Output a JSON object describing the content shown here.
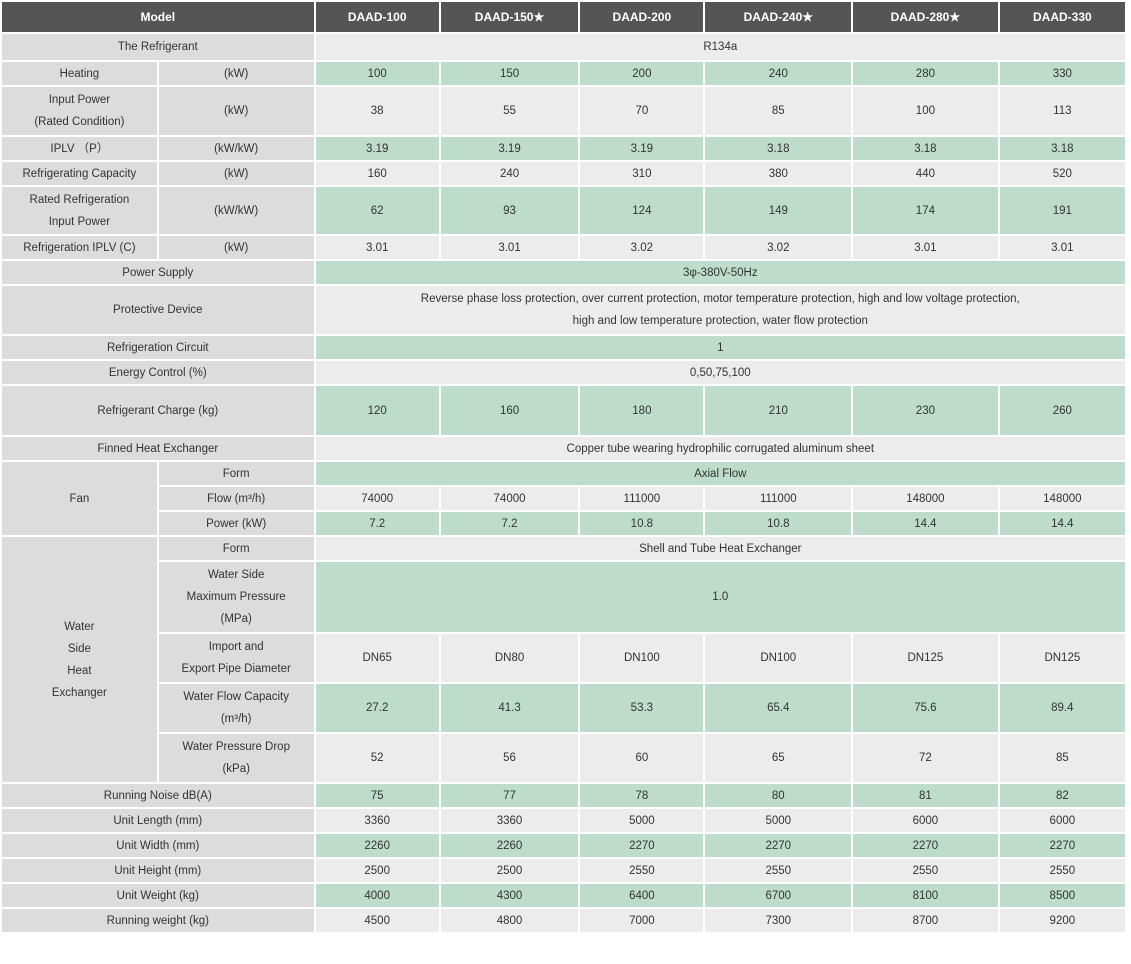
{
  "models": [
    "DAAD-100",
    "DAAD-150★",
    "DAAD-200",
    "DAAD-240★",
    "DAAD-280★",
    "DAAD-330"
  ],
  "model_header": "Model",
  "rows": [
    {
      "type": "span",
      "label": "The Refrigerant",
      "value": "R134a",
      "shade": "w",
      "h": 26
    },
    {
      "type": "split",
      "label": "Heating",
      "unit": "(kW)",
      "values": [
        "100",
        "150",
        "200",
        "240",
        "280",
        "330"
      ],
      "shade": "g",
      "h": 23
    },
    {
      "type": "split",
      "label": "Input Power\n(Rated Condition)",
      "unit": "(kW)",
      "values": [
        "38",
        "55",
        "70",
        "85",
        "100",
        "113"
      ],
      "shade": "w",
      "h": 48
    },
    {
      "type": "split",
      "label": "IPLV （P）",
      "unit": "(kW/kW)",
      "values": [
        "3.19",
        "3.19",
        "3.19",
        "3.18",
        "3.18",
        "3.18"
      ],
      "shade": "g",
      "h": 23
    },
    {
      "type": "split",
      "label": "Refrigerating Capacity",
      "unit": "(kW)",
      "values": [
        "160",
        "240",
        "310",
        "380",
        "440",
        "520"
      ],
      "shade": "w",
      "h": 23
    },
    {
      "type": "split",
      "label": "Rated Refrigeration\nInput Power",
      "unit": "(kW/kW)",
      "values": [
        "62",
        "93",
        "124",
        "149",
        "174",
        "191"
      ],
      "shade": "g",
      "h": 47
    },
    {
      "type": "split",
      "label": "Refrigeration IPLV (C)",
      "unit": "(kW)",
      "values": [
        "3.01",
        "3.01",
        "3.02",
        "3.02",
        "3.01",
        "3.01"
      ],
      "shade": "w",
      "h": 23
    },
    {
      "type": "span",
      "label": "Power Supply",
      "value": "3φ-380V-50Hz",
      "shade": "g",
      "h": 23
    },
    {
      "type": "span",
      "label": "Protective Device",
      "value": "Reverse phase loss protection, over current protection, motor temperature protection, high and low voltage protection,\nhigh and low temperature protection, water flow protection",
      "shade": "w",
      "h": 48
    },
    {
      "type": "span",
      "label": "Refrigeration Circuit",
      "value": "1",
      "shade": "g",
      "h": 23
    },
    {
      "type": "span",
      "label": "Energy Control (%)",
      "value": "0,50,75,100",
      "shade": "w",
      "h": 23
    },
    {
      "type": "full",
      "label": "Refrigerant Charge (kg)",
      "values": [
        "120",
        "160",
        "180",
        "210",
        "230",
        "260"
      ],
      "shade": "g",
      "h": 49
    },
    {
      "type": "span",
      "label": "Finned Heat Exchanger",
      "value": "Copper tube wearing hydrophilic corrugated aluminum sheet",
      "shade": "w",
      "h": 23
    }
  ],
  "fan": {
    "label": "Fan",
    "rows": [
      {
        "type": "span",
        "label": "Form",
        "value": "Axial Flow",
        "shade": "g",
        "h": 23
      },
      {
        "type": "split",
        "label": "Flow (m³/h)",
        "values": [
          "74000",
          "74000",
          "111000",
          "111000",
          "148000",
          "148000"
        ],
        "shade": "w",
        "h": 23
      },
      {
        "type": "split",
        "label": "Power (kW)",
        "values": [
          "7.2",
          "7.2",
          "10.8",
          "10.8",
          "14.4",
          "14.4"
        ],
        "shade": "g",
        "h": 23
      }
    ]
  },
  "water": {
    "label": "Water\nSide\nHeat\nExchanger",
    "rows": [
      {
        "type": "span",
        "label": "Form",
        "value": "Shell and Tube Heat Exchanger",
        "shade": "w",
        "h": 23
      },
      {
        "type": "span",
        "label": "Water Side\nMaximum Pressure\n(MPa)",
        "value": "1.0",
        "shade": "g",
        "h": 70
      },
      {
        "type": "split",
        "label": "Import and\nExport Pipe Diameter",
        "values": [
          "DN65",
          "DN80",
          "DN100",
          "DN100",
          "DN125",
          "DN125"
        ],
        "shade": "w",
        "h": 48
      },
      {
        "type": "split",
        "label": "Water Flow Capacity\n(m³/h)",
        "values": [
          "27.2",
          "41.3",
          "53.3",
          "65.4",
          "75.6",
          "89.4"
        ],
        "shade": "g",
        "h": 48
      },
      {
        "type": "split",
        "label": "Water Pressure Drop\n(kPa)",
        "values": [
          "52",
          "56",
          "60",
          "65",
          "72",
          "85"
        ],
        "shade": "w",
        "h": 48
      }
    ]
  },
  "bottom_rows": [
    {
      "type": "full",
      "label": "Running Noise dB(A)",
      "values": [
        "75",
        "77",
        "78",
        "80",
        "81",
        "82"
      ],
      "shade": "g",
      "h": 23
    },
    {
      "type": "full",
      "label": "Unit Length (mm)",
      "values": [
        "3360",
        "3360",
        "5000",
        "5000",
        "6000",
        "6000"
      ],
      "shade": "w",
      "h": 23
    },
    {
      "type": "full",
      "label": "Unit Width (mm)",
      "values": [
        "2260",
        "2260",
        "2270",
        "2270",
        "2270",
        "2270"
      ],
      "shade": "g",
      "h": 23
    },
    {
      "type": "full",
      "label": "Unit Height (mm)",
      "values": [
        "2500",
        "2500",
        "2550",
        "2550",
        "2550",
        "2550"
      ],
      "shade": "w",
      "h": 23
    },
    {
      "type": "full",
      "label": "Unit Weight (kg)",
      "values": [
        "4000",
        "4300",
        "6400",
        "6700",
        "8100",
        "8500"
      ],
      "shade": "g",
      "h": 23
    },
    {
      "type": "full",
      "label": "Running weight (kg)",
      "values": [
        "4500",
        "4800",
        "7000",
        "7300",
        "8700",
        "9200"
      ],
      "shade": "w",
      "h": 23
    }
  ],
  "colors": {
    "header": "#555555",
    "label": "#dcdcdc",
    "green": "#bddccb",
    "light": "#ececec"
  }
}
